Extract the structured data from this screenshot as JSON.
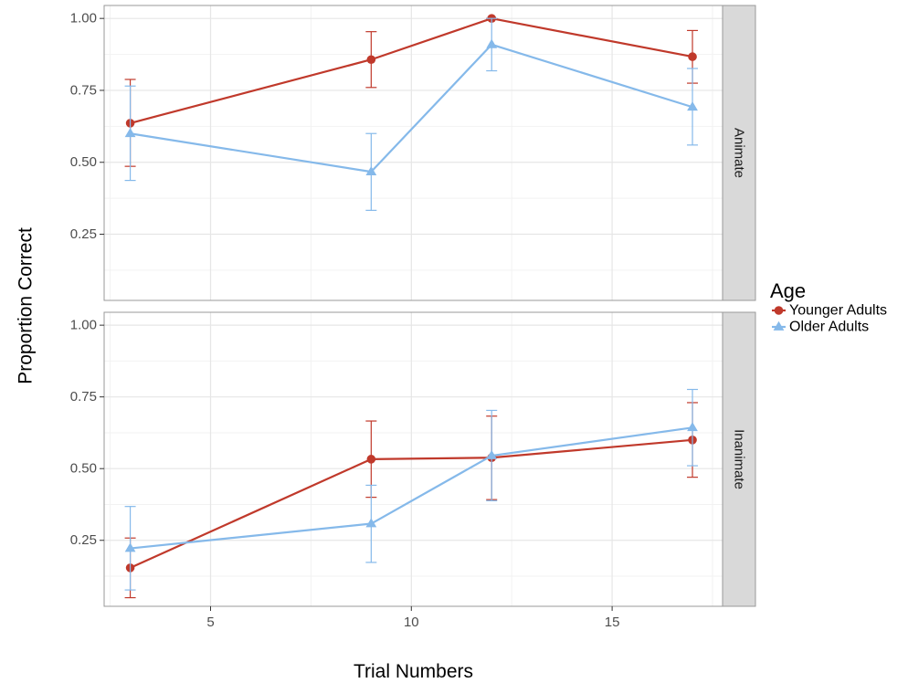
{
  "chart_data": {
    "type": "line",
    "xlabel": "Trial Numbers",
    "ylabel": "Proportion Correct",
    "xlim": [
      2.35,
      17.75
    ],
    "ylim": [
      0.02,
      1.045
    ],
    "x_ticks": [
      5,
      10,
      15
    ],
    "y_ticks": [
      0.25,
      0.5,
      0.75,
      1.0
    ],
    "y_tick_labels": [
      "0.25",
      "0.50",
      "0.75",
      "1.00"
    ],
    "grid": true,
    "legend": {
      "title": "Age",
      "position": "right",
      "entries": [
        "Younger Adults",
        "Older Adults"
      ]
    },
    "colors": {
      "younger": "#c0392b",
      "older": "#85b9ea"
    },
    "panels": [
      {
        "facet": "Animate",
        "series": [
          {
            "name": "Younger Adults",
            "marker": "circle",
            "x": [
              3,
              9,
              12,
              17
            ],
            "y": [
              0.636,
              0.857,
              1.0,
              0.867
            ],
            "err_low": [
              0.486,
              0.76,
              1.0,
              0.775
            ],
            "err_high": [
              0.788,
              0.954,
              1.0,
              0.958
            ]
          },
          {
            "name": "Older Adults",
            "marker": "triangle",
            "x": [
              3,
              9,
              12,
              17
            ],
            "y": [
              0.6,
              0.467,
              0.909,
              0.692
            ],
            "err_low": [
              0.437,
              0.333,
              0.818,
              0.56
            ],
            "err_high": [
              0.765,
              0.6,
              1.0,
              0.826
            ]
          }
        ]
      },
      {
        "facet": "Inanimate",
        "series": [
          {
            "name": "Younger Adults",
            "marker": "circle",
            "x": [
              3,
              9,
              12,
              17
            ],
            "y": [
              0.154,
              0.533,
              0.538,
              0.6
            ],
            "err_low": [
              0.05,
              0.4,
              0.392,
              0.47
            ],
            "err_high": [
              0.258,
              0.666,
              0.683,
              0.73
            ]
          },
          {
            "name": "Older Adults",
            "marker": "triangle",
            "x": [
              3,
              9,
              12,
              17
            ],
            "y": [
              0.222,
              0.308,
              0.545,
              0.643
            ],
            "err_low": [
              0.077,
              0.173,
              0.388,
              0.51
            ],
            "err_high": [
              0.368,
              0.442,
              0.703,
              0.776
            ]
          }
        ]
      }
    ]
  }
}
